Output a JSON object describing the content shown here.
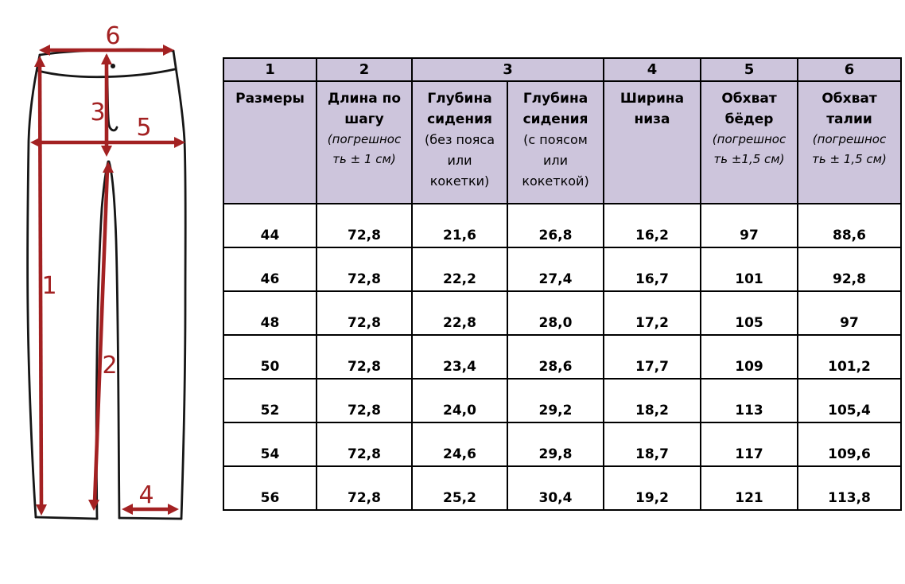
{
  "diagram": {
    "description": "pants-measurement-schematic",
    "arrow_color": "#a32122",
    "outline_color": "#161616",
    "labels": {
      "l1": "1",
      "l2": "2",
      "l3": "3",
      "l4": "4",
      "l5": "5",
      "l6": "6"
    }
  },
  "table": {
    "colors": {
      "header_bg": "#cdc5dc",
      "border": "#000000"
    },
    "header_numbers": [
      "1",
      "2",
      "3",
      "4",
      "5",
      "6"
    ],
    "columns": [
      {
        "title_lines": [
          "Размеры"
        ],
        "note_lines": [],
        "note_italic": false
      },
      {
        "title_lines": [
          "Длина по",
          "шагу"
        ],
        "note_lines": [
          "(погрешнос",
          "ть ± 1 см)"
        ],
        "note_italic": true
      },
      {
        "title_lines": [
          "Глубина",
          "сидения"
        ],
        "note_lines": [
          "(без пояса",
          "или",
          "кокетки)"
        ],
        "note_italic": false
      },
      {
        "title_lines": [
          "Глубина",
          "сидения"
        ],
        "note_lines": [
          "(с поясом",
          "или",
          "кокеткой)"
        ],
        "note_italic": false
      },
      {
        "title_lines": [
          "Ширина",
          "низа"
        ],
        "note_lines": [],
        "note_italic": false
      },
      {
        "title_lines": [
          "Обхват",
          "бёдер"
        ],
        "note_lines": [
          "(погрешнос",
          "ть ±1,5 см)"
        ],
        "note_italic": true
      },
      {
        "title_lines": [
          "Обхват",
          "талии"
        ],
        "note_lines": [
          "(погрешнос",
          "ть ± 1,5 см)"
        ],
        "note_italic": true
      }
    ],
    "rows": [
      [
        "44",
        "72,8",
        "21,6",
        "26,8",
        "16,2",
        "97",
        "88,6"
      ],
      [
        "46",
        "72,8",
        "22,2",
        "27,4",
        "16,7",
        "101",
        "92,8"
      ],
      [
        "48",
        "72,8",
        "22,8",
        "28,0",
        "17,2",
        "105",
        "97"
      ],
      [
        "50",
        "72,8",
        "23,4",
        "28,6",
        "17,7",
        "109",
        "101,2"
      ],
      [
        "52",
        "72,8",
        "24,0",
        "29,2",
        "18,2",
        "113",
        "105,4"
      ],
      [
        "54",
        "72,8",
        "24,6",
        "29,8",
        "18,7",
        "117",
        "109,6"
      ],
      [
        "56",
        "72,8",
        "25,2",
        "30,4",
        "19,2",
        "121",
        "113,8"
      ]
    ]
  }
}
